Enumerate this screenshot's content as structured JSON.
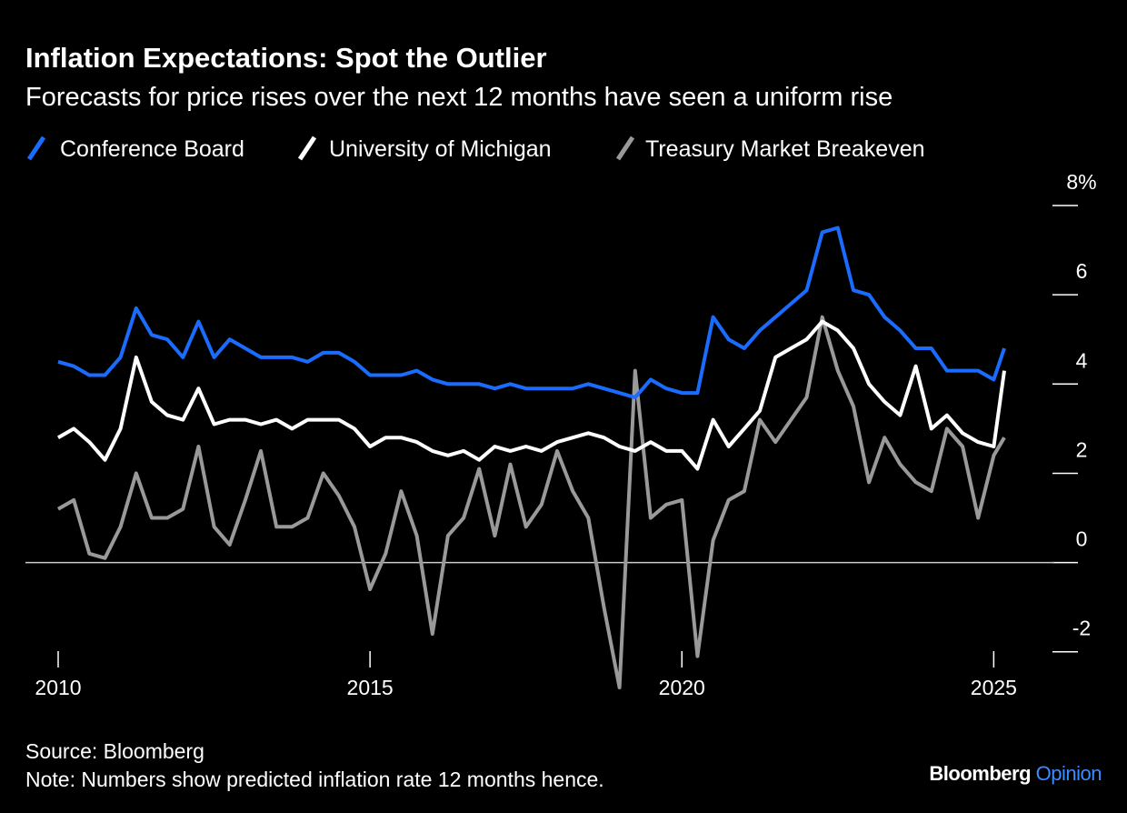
{
  "chart_data": {
    "type": "line",
    "title": "Inflation Expectations: Spot the Outlier",
    "subtitle": "Forecasts for price rises over the next 12 months have seen a uniform rise",
    "source": "Source: Bloomberg",
    "note": "Note: Numbers show predicted inflation rate 12 months hence.",
    "brand": [
      "Bloomberg",
      "Opinion"
    ],
    "x": [
      2010,
      2010.25,
      2010.5,
      2010.75,
      2011,
      2011.25,
      2011.5,
      2011.75,
      2012,
      2012.25,
      2012.5,
      2012.75,
      2013,
      2013.25,
      2013.5,
      2013.75,
      2014,
      2014.25,
      2014.5,
      2014.75,
      2015,
      2015.25,
      2015.5,
      2015.75,
      2016,
      2016.25,
      2016.5,
      2016.75,
      2017,
      2017.25,
      2017.5,
      2017.75,
      2018,
      2018.25,
      2018.5,
      2018.75,
      2019,
      2019.25,
      2019.5,
      2019.75,
      2020,
      2020.25,
      2020.5,
      2020.75,
      2021,
      2021.25,
      2021.5,
      2021.75,
      2022,
      2022.25,
      2022.5,
      2022.75,
      2023,
      2023.25,
      2023.5,
      2023.75,
      2024,
      2024.25,
      2024.5,
      2024.75,
      2025,
      2025.17
    ],
    "series": [
      {
        "name": "Conference Board",
        "color": "#1a6cff",
        "values": [
          4.5,
          4.4,
          4.2,
          4.2,
          4.6,
          5.7,
          5.1,
          5.0,
          4.6,
          5.4,
          4.6,
          5.0,
          4.8,
          4.6,
          4.6,
          4.6,
          4.5,
          4.7,
          4.7,
          4.5,
          4.2,
          4.2,
          4.2,
          4.3,
          4.1,
          4.0,
          4.0,
          4.0,
          3.9,
          4.0,
          3.9,
          3.9,
          3.9,
          3.9,
          4.0,
          3.9,
          3.8,
          3.7,
          4.1,
          3.9,
          3.8,
          3.8,
          5.5,
          5.0,
          4.8,
          5.2,
          5.5,
          5.8,
          6.1,
          7.4,
          7.5,
          6.1,
          6.0,
          5.5,
          5.2,
          4.8,
          4.8,
          4.3,
          4.3,
          4.3,
          4.1,
          4.8
        ]
      },
      {
        "name": "University of Michigan",
        "color": "#ffffff",
        "values": [
          2.8,
          3.0,
          2.7,
          2.3,
          3.0,
          4.6,
          3.6,
          3.3,
          3.2,
          3.9,
          3.1,
          3.2,
          3.2,
          3.1,
          3.2,
          3.0,
          3.2,
          3.2,
          3.2,
          3.0,
          2.6,
          2.8,
          2.8,
          2.7,
          2.5,
          2.4,
          2.5,
          2.3,
          2.6,
          2.5,
          2.6,
          2.5,
          2.7,
          2.8,
          2.9,
          2.8,
          2.6,
          2.5,
          2.7,
          2.5,
          2.5,
          2.1,
          3.2,
          2.6,
          3.0,
          3.4,
          4.6,
          4.8,
          5.0,
          5.4,
          5.2,
          4.8,
          4.0,
          3.6,
          3.3,
          4.4,
          3.0,
          3.3,
          2.9,
          2.7,
          2.6,
          4.3
        ]
      },
      {
        "name": "Treasury Market Breakeven",
        "color": "#999999",
        "values": [
          1.2,
          1.4,
          0.2,
          0.1,
          0.8,
          2.0,
          1.0,
          1.0,
          1.2,
          2.6,
          0.8,
          0.4,
          1.4,
          2.5,
          0.8,
          0.8,
          1.0,
          2.0,
          1.5,
          0.8,
          -0.6,
          0.2,
          1.6,
          0.6,
          -1.6,
          0.6,
          1.0,
          2.1,
          0.6,
          2.2,
          0.8,
          1.3,
          2.5,
          1.6,
          1.0,
          -1.0,
          -2.8,
          4.3,
          1.0,
          1.3,
          1.4,
          -2.1,
          0.5,
          1.4,
          1.6,
          3.2,
          2.7,
          3.2,
          3.7,
          5.5,
          4.3,
          3.5,
          1.8,
          2.8,
          2.2,
          1.8,
          1.6,
          3.0,
          2.6,
          1.0,
          2.4,
          2.8
        ]
      }
    ],
    "xlim": [
      2010,
      2026
    ],
    "xticks": [
      2010,
      2015,
      2020,
      2025
    ],
    "ylim": [
      -2.8,
      8
    ],
    "yticks": [
      -2,
      0,
      2,
      4,
      6,
      {
        "value": 8,
        "label": "8%"
      }
    ]
  }
}
